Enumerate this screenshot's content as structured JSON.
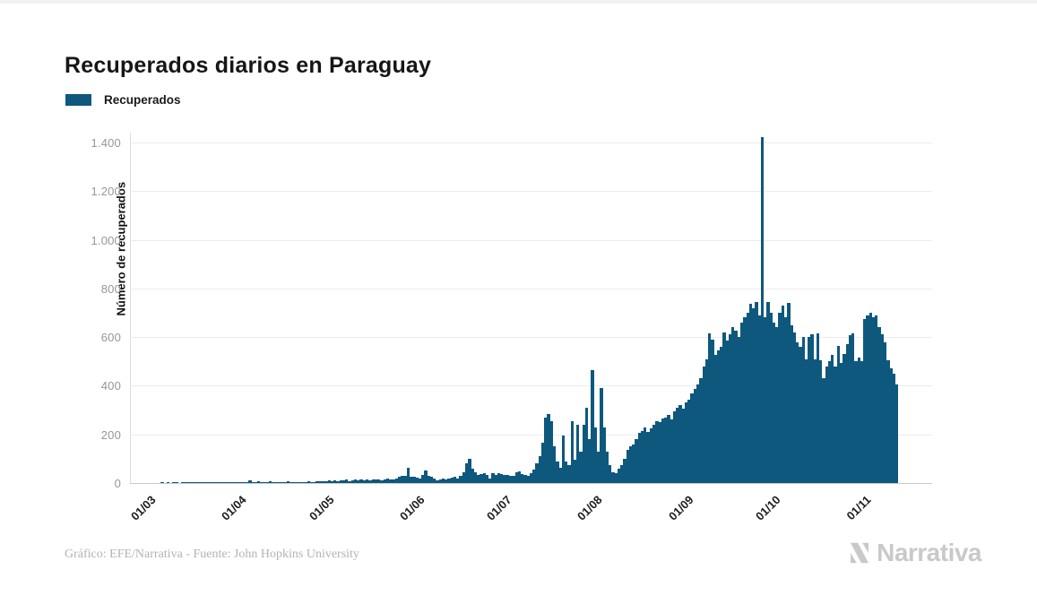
{
  "title": "Recuperados diarios en Paraguay",
  "legend": {
    "label": "Recuperados",
    "color": "#0e587e"
  },
  "y_axis": {
    "title": "Número de recuperados"
  },
  "footer": {
    "credit": "Gráfico: EFE/Narrativa - Fuente: John Hopkins University"
  },
  "logo": {
    "text": "Narrativa",
    "icon": "narrativa-n-icon",
    "color": "#c9c9c9"
  },
  "chart_data": {
    "type": "bar",
    "title": "Recuperados diarios en Paraguay",
    "series_name": "Recuperados",
    "bar_color": "#0e587e",
    "ylabel": "Número de recuperados",
    "ylim": [
      0,
      1400
    ],
    "y_tick_values": [
      0,
      200,
      400,
      600,
      800,
      1000,
      1200,
      1400
    ],
    "y_tick_labels": [
      "0",
      "200",
      "400",
      "600",
      "800",
      "1.000",
      "1.200",
      "1.400"
    ],
    "grid": "horizontal",
    "legend_position": "top-left",
    "start_date": "01/03/2020",
    "end_date": "16/11/2020",
    "x_tick_labels": [
      "01/03",
      "01/04",
      "01/05",
      "01/06",
      "01/07",
      "01/08",
      "01/09",
      "01/10",
      "01/11"
    ],
    "x_tick_day_index": [
      0,
      31,
      61,
      92,
      122,
      153,
      184,
      214,
      245
    ],
    "peak_value": 1420,
    "peak_date": "01/10",
    "values": [
      0,
      0,
      0,
      0,
      0,
      0,
      0,
      0,
      0,
      1,
      0,
      1,
      0,
      1,
      1,
      0,
      1,
      1,
      1,
      2,
      1,
      1,
      2,
      1,
      2,
      1,
      2,
      1,
      1,
      2,
      1,
      2,
      1,
      2,
      3,
      2,
      3,
      2,
      5,
      11,
      3,
      4,
      6,
      3,
      2,
      5,
      6,
      3,
      2,
      4,
      5,
      3,
      6,
      4,
      3,
      5,
      4,
      2,
      5,
      6,
      4,
      5,
      8,
      6,
      9,
      7,
      10,
      8,
      12,
      9,
      11,
      10,
      13,
      9,
      12,
      14,
      10,
      13,
      11,
      14,
      12,
      15,
      13,
      16,
      12,
      15,
      18,
      14,
      16,
      20,
      25,
      30,
      30,
      64,
      25,
      24,
      22,
      18,
      35,
      50,
      30,
      25,
      20,
      12,
      15,
      18,
      14,
      18,
      22,
      24,
      18,
      30,
      45,
      80,
      98,
      60,
      45,
      35,
      38,
      40,
      32,
      18,
      40,
      35,
      42,
      38,
      32,
      35,
      30,
      28,
      45,
      48,
      38,
      35,
      30,
      40,
      55,
      80,
      110,
      165,
      270,
      285,
      255,
      150,
      90,
      63,
      195,
      90,
      75,
      255,
      95,
      240,
      130,
      240,
      310,
      180,
      465,
      230,
      130,
      390,
      230,
      130,
      75,
      45,
      40,
      60,
      75,
      100,
      135,
      150,
      160,
      180,
      205,
      215,
      230,
      210,
      225,
      240,
      255,
      250,
      265,
      270,
      280,
      260,
      295,
      310,
      320,
      305,
      330,
      342,
      368,
      385,
      405,
      430,
      478,
      510,
      615,
      590,
      525,
      545,
      560,
      620,
      585,
      610,
      640,
      625,
      600,
      660,
      680,
      700,
      735,
      720,
      745,
      690,
      1420,
      680,
      745,
      700,
      660,
      640,
      700,
      730,
      680,
      740,
      650,
      620,
      580,
      560,
      600,
      510,
      600,
      610,
      510,
      615,
      505,
      430,
      480,
      500,
      525,
      480,
      565,
      495,
      530,
      570,
      608,
      615,
      500,
      515,
      500,
      675,
      690,
      700,
      680,
      690,
      640,
      610,
      580,
      505,
      470,
      450,
      405
    ]
  }
}
